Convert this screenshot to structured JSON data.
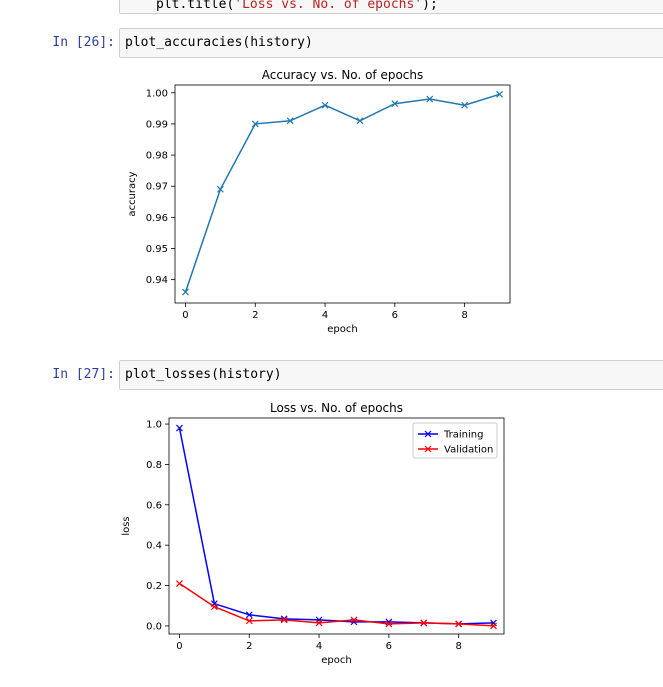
{
  "cells": {
    "prev_code": {
      "prefix": "plt.title(",
      "string": "'Loss vs. No. of epochs'",
      "suffix": ");"
    },
    "cell26": {
      "prompt": "In [26]:",
      "code": "plot_accuracies(history)"
    },
    "cell27": {
      "prompt": "In [27]:",
      "code": "plot_losses(history)"
    }
  },
  "colors": {
    "accuracy_line": "#1f77b4",
    "training_line": "#0000ff",
    "validation_line": "#ff0000",
    "prompt": "#303f9f",
    "string": "#ba2121"
  },
  "chart_data": [
    {
      "type": "line",
      "title": "Accuracy vs. No. of epochs",
      "xlabel": "epoch",
      "ylabel": "accuracy",
      "x": [
        0,
        1,
        2,
        3,
        4,
        5,
        6,
        7,
        8,
        9
      ],
      "series": [
        {
          "values": [
            0.936,
            0.969,
            0.99,
            0.991,
            0.996,
            0.991,
            0.9965,
            0.998,
            0.996,
            0.9995
          ],
          "marker": "x"
        }
      ],
      "xlim": [
        -0.3,
        9.3
      ],
      "ylim": [
        0.9325,
        1.0025
      ],
      "xticks": [
        0,
        2,
        4,
        6,
        8
      ],
      "yticks": [
        0.94,
        0.95,
        0.96,
        0.97,
        0.98,
        0.99,
        1.0
      ],
      "xticklabels": [
        "0",
        "2",
        "4",
        "6",
        "8"
      ],
      "yticklabels": [
        "0.94",
        "0.95",
        "0.96",
        "0.97",
        "0.98",
        "0.99",
        "1.00"
      ],
      "grid": false,
      "legend": null
    },
    {
      "type": "line",
      "title": "Loss vs. No. of epochs",
      "xlabel": "epoch",
      "ylabel": "loss",
      "x": [
        0,
        1,
        2,
        3,
        4,
        5,
        6,
        7,
        8,
        9
      ],
      "series": [
        {
          "name": "Training",
          "values": [
            0.98,
            0.11,
            0.055,
            0.035,
            0.03,
            0.02,
            0.02,
            0.015,
            0.01,
            0.015
          ],
          "marker": "x"
        },
        {
          "name": "Validation",
          "values": [
            0.21,
            0.095,
            0.025,
            0.03,
            0.015,
            0.03,
            0.01,
            0.015,
            0.01,
            0.0
          ],
          "marker": "x"
        }
      ],
      "xlim": [
        -0.3,
        9.3
      ],
      "ylim": [
        -0.04,
        1.03
      ],
      "xticks": [
        0,
        2,
        4,
        6,
        8
      ],
      "yticks": [
        0.0,
        0.2,
        0.4,
        0.6,
        0.8,
        1.0
      ],
      "xticklabels": [
        "0",
        "2",
        "4",
        "6",
        "8"
      ],
      "yticklabels": [
        "0.0",
        "0.2",
        "0.4",
        "0.6",
        "0.8",
        "1.0"
      ],
      "grid": false,
      "legend": "top-right"
    }
  ]
}
